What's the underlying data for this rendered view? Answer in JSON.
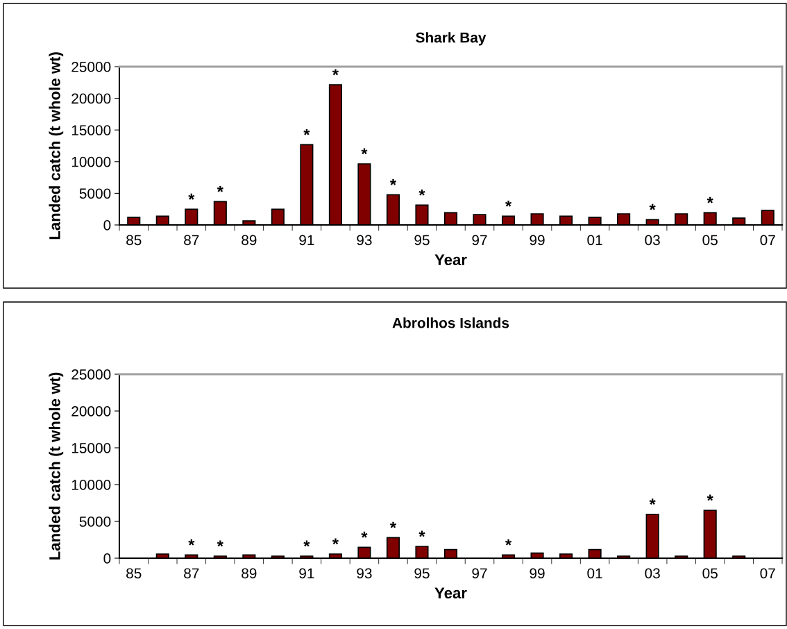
{
  "chart_data": [
    {
      "type": "bar",
      "title": "Shark Bay",
      "xlabel": "Year",
      "ylabel": "Landed catch (t whole wt)",
      "categories": [
        "85",
        null,
        "87",
        null,
        "89",
        null,
        "91",
        null,
        "93",
        null,
        "95",
        null,
        "97",
        null,
        "99",
        null,
        "01",
        null,
        "03",
        null,
        "05",
        null,
        "07"
      ],
      "color": "#800000",
      "values": [
        1200,
        1380,
        2480,
        3680,
        650,
        2480,
        12670,
        22130,
        9650,
        4770,
        3130,
        1930,
        1640,
        1380,
        1750,
        1380,
        1200,
        1750,
        840,
        1750,
        1930,
        1090,
        2290
      ],
      "value_labels": [
        null,
        null,
        "*",
        "*",
        null,
        null,
        "*",
        "*",
        "*",
        "*",
        "*",
        null,
        null,
        "*",
        null,
        null,
        null,
        null,
        "*",
        null,
        "*",
        null,
        null
      ],
      "ylim": [
        0,
        25000
      ],
      "yticks": [
        0,
        5000,
        10000,
        15000,
        20000,
        25000
      ]
    },
    {
      "type": "bar",
      "title": "Abrolhos Islands",
      "xlabel": "Year",
      "ylabel": "Landed catch (t whole wt)",
      "categories": [
        "85",
        null,
        "87",
        null,
        "89",
        null,
        "91",
        null,
        "93",
        null,
        "95",
        null,
        "97",
        null,
        "99",
        null,
        "01",
        null,
        "03",
        null,
        "05",
        null,
        "07"
      ],
      "color": "#800000",
      "values": [
        null,
        565,
        440,
        280,
        440,
        280,
        280,
        565,
        1475,
        2800,
        1600,
        1160,
        null,
        440,
        690,
        565,
        1160,
        280,
        5970,
        280,
        6500,
        280,
        null
      ],
      "value_labels": [
        null,
        null,
        "*",
        "*",
        null,
        null,
        "*",
        "*",
        "*",
        "*",
        "*",
        null,
        null,
        "*",
        null,
        null,
        null,
        null,
        "*",
        null,
        "*",
        null,
        null
      ],
      "ylim": [
        0,
        25000
      ],
      "yticks": [
        0,
        5000,
        10000,
        15000,
        20000,
        25000
      ]
    }
  ]
}
